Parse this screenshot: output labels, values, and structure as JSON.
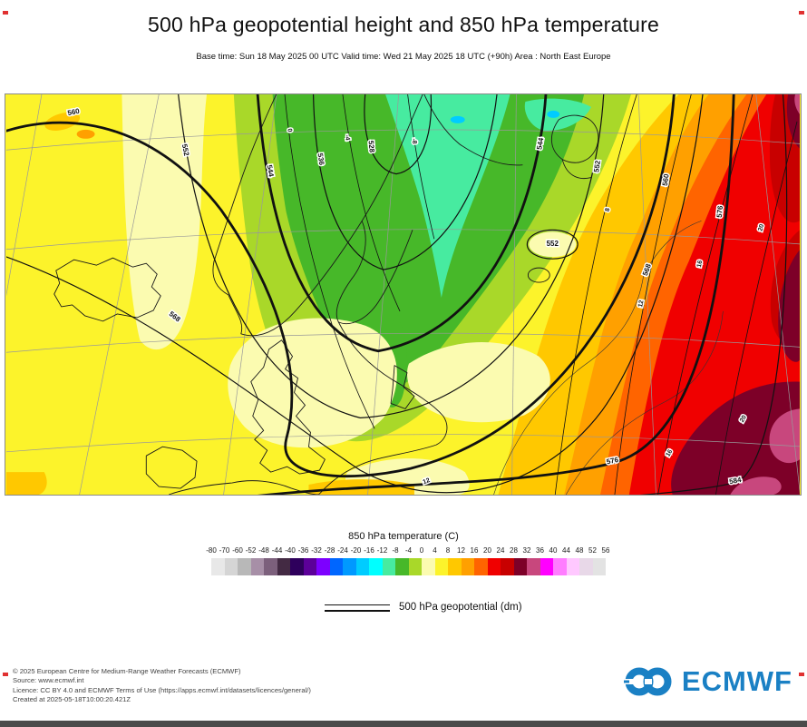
{
  "title": "500 hPa geopotential height and 850 hPa temperature",
  "subtitle": "Base time: Sun 18 May 2025 00 UTC Valid time: Wed 21 May 2025 18 UTC (+90h) Area : North East Europe",
  "colorbar": {
    "title": "850 hPa temperature (C)",
    "ticks": [
      "-80",
      "-70",
      "-60",
      "-52",
      "-48",
      "-44",
      "-40",
      "-36",
      "-32",
      "-28",
      "-24",
      "-20",
      "-16",
      "-12",
      "-8",
      "-4",
      "0",
      "4",
      "8",
      "12",
      "16",
      "20",
      "24",
      "28",
      "32",
      "36",
      "40",
      "44",
      "48",
      "52",
      "56"
    ],
    "colors": [
      "#e8e8e8",
      "#d5d5d5",
      "#b8b8b8",
      "#a78fa7",
      "#7c607c",
      "#432a43",
      "#2e005c",
      "#5c0099",
      "#7d00ff",
      "#0066ff",
      "#0099ff",
      "#00ccff",
      "#00ffff",
      "#47eba0",
      "#47b829",
      "#a9d829",
      "#fbfbb0",
      "#fcf32b",
      "#ffc800",
      "#ffa000",
      "#ff6400",
      "#f00000",
      "#c80000",
      "#7d0028",
      "#c8477d",
      "#ff00ff",
      "#ff7dff",
      "#ffc8ff",
      "#e8d8e8",
      "#e3e3e3"
    ]
  },
  "line_legend_label": "500 hPa geopotential (dm)",
  "map": {
    "geo_labels": [
      "560",
      "552",
      "544",
      "536",
      "528",
      "544",
      "552",
      "560",
      "568",
      "568",
      "576",
      "576",
      "584",
      "552"
    ],
    "temp_labels": [
      "0",
      "-4",
      "-8",
      "8",
      "12",
      "16",
      "20",
      "16",
      "20",
      "12"
    ],
    "line_color": "#111111",
    "graticule_color": "#999999",
    "coast_color": "#1a1a1a"
  },
  "footer": {
    "lines": [
      "© 2025 European Centre for Medium-Range Weather Forecasts (ECMWF)",
      "Source: www.ecmwf.int",
      "Licence: CC BY 4.0 and ECMWF Terms of Use (https://apps.ecmwf.int/datasets/licences/general/)",
      "Created at 2025-05-18T10:00:20.421Z"
    ]
  },
  "logo": {
    "text": "ECMWF",
    "color": "#1a80c4"
  },
  "chart_data": {
    "type": "heatmap",
    "title": "500 hPa geopotential height and 850 hPa temperature",
    "base_time": "Sun 18 May 2025 00 UTC",
    "valid_time": "Wed 21 May 2025 18 UTC (+90h)",
    "lead_time_hours": 90,
    "area": "North East Europe",
    "shading_variable": "850 hPa temperature (C)",
    "shading_level_boundaries": [
      -80,
      -70,
      -60,
      -52,
      -48,
      -44,
      -40,
      -36,
      -32,
      -28,
      -24,
      -20,
      -16,
      -12,
      -8,
      -4,
      0,
      4,
      8,
      12,
      16,
      20,
      24,
      28,
      32,
      36,
      40,
      44,
      48,
      52,
      56
    ],
    "shading_colors": [
      "#e8e8e8",
      "#d5d5d5",
      "#b8b8b8",
      "#a78fa7",
      "#7c607c",
      "#432a43",
      "#2e005c",
      "#5c0099",
      "#7d00ff",
      "#0066ff",
      "#0099ff",
      "#00ccff",
      "#00ffff",
      "#47eba0",
      "#47b829",
      "#a9d829",
      "#fbfbb0",
      "#fcf32b",
      "#ffc800",
      "#ffa000",
      "#ff6400",
      "#f00000",
      "#c80000",
      "#7d0028",
      "#c8477d",
      "#ff00ff",
      "#ff7dff",
      "#ffc8ff",
      "#e8d8e8",
      "#e3e3e3"
    ],
    "contour_variable": "500 hPa geopotential (dm)",
    "contour_labeled_levels_dm": [
      528,
      536,
      544,
      552,
      560,
      568,
      576,
      584
    ],
    "contour_interval_dm": 8,
    "legend_position": "bottom",
    "features": [
      "Cold upper trough (T850 -12 to -8 C, teal/green shading; Z500 minimum below 528 dm) over the Norwegian Sea and Scandinavia",
      "Mild air (T850 4 to 8 C, yellow) over Iceland, the British Isles and central Europe",
      "Warm ridge (T850 12 to 24 C, orange to red; Z500 576-584 dm) over eastern Europe and western Russia",
      "Hottest air (T850 24 to 36 C, dark red / magenta-rose) along the far eastern and southeastern edge"
    ]
  }
}
